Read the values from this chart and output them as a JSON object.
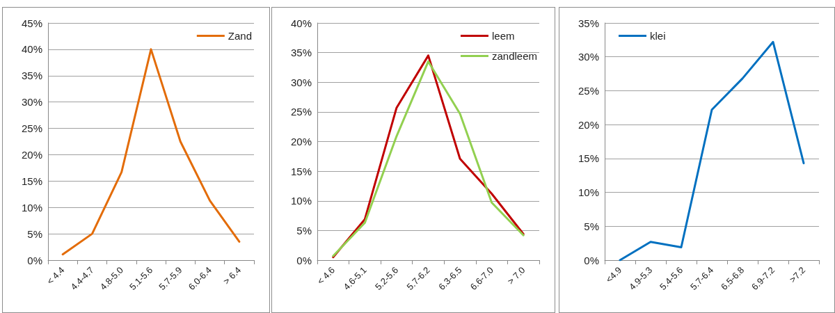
{
  "chart_data": [
    {
      "type": "line",
      "categories": [
        "< 4.4",
        "4.4-4.7",
        "4.8-5.0",
        "5.1-5.6",
        "5.7-5.9",
        "6.0-6.4",
        "> 6.4"
      ],
      "series": [
        {
          "name": "Zand",
          "color": "#e36c09",
          "values": [
            1.1,
            5,
            16.7,
            40,
            22.5,
            11.3,
            3.5
          ]
        }
      ],
      "ylim": [
        0,
        45
      ],
      "yticks": [
        {
          "value": 0,
          "label": "0%"
        },
        {
          "value": 5,
          "label": "5%"
        },
        {
          "value": 10,
          "label": "10%"
        },
        {
          "value": 15,
          "label": "15%"
        },
        {
          "value": 20,
          "label": "20%"
        },
        {
          "value": 25,
          "label": "25%"
        },
        {
          "value": 30,
          "label": "30%"
        },
        {
          "value": 35,
          "label": "35%"
        },
        {
          "value": 40,
          "label": "40%"
        },
        {
          "value": 45,
          "label": "45%"
        }
      ],
      "grid": "y",
      "legend": "top right",
      "marker": "none",
      "line_style": "solid"
    },
    {
      "type": "line",
      "categories": [
        "< 4.6",
        "4.6-5.1",
        "5.2-5.6",
        "5.7-6.2",
        "6.3-6.5",
        "6.6-7.0",
        "> 7.0"
      ],
      "series": [
        {
          "name": "leem",
          "color": "#c00000",
          "values": [
            0.5,
            6.9,
            25.7,
            34.5,
            17.1,
            11.2,
            4.4
          ]
        },
        {
          "name": "zandleem",
          "color": "#92d050",
          "values": [
            0.7,
            6.3,
            20.9,
            33.5,
            24.7,
            9.7,
            4.2
          ]
        }
      ],
      "ylim": [
        0,
        40
      ],
      "yticks": [
        {
          "value": 0,
          "label": "0%"
        },
        {
          "value": 5,
          "label": "5%"
        },
        {
          "value": 10,
          "label": "10%"
        },
        {
          "value": 15,
          "label": "15%"
        },
        {
          "value": 20,
          "label": "20%"
        },
        {
          "value": 25,
          "label": "25%"
        },
        {
          "value": 30,
          "label": "30%"
        },
        {
          "value": 35,
          "label": "35%"
        },
        {
          "value": 40,
          "label": "40%"
        }
      ],
      "grid": "y",
      "legend": "top right",
      "marker": "none",
      "line_style": "solid"
    },
    {
      "type": "line",
      "categories": [
        "<4.9",
        "4.9-5.3",
        "5.4-5.6",
        "5.7-6.4",
        "6.5-6.8",
        "6.9-7.2",
        ">7.2"
      ],
      "series": [
        {
          "name": "klei",
          "color": "#0070c0",
          "values": [
            0,
            2.7,
            1.9,
            22.2,
            26.8,
            32.2,
            14.3
          ]
        }
      ],
      "ylim": [
        0,
        35
      ],
      "yticks": [
        {
          "value": 0,
          "label": "0%"
        },
        {
          "value": 5,
          "label": "5%"
        },
        {
          "value": 10,
          "label": "10%"
        },
        {
          "value": 15,
          "label": "15%"
        },
        {
          "value": 20,
          "label": "20%"
        },
        {
          "value": 25,
          "label": "25%"
        },
        {
          "value": 30,
          "label": "30%"
        },
        {
          "value": 35,
          "label": "35%"
        }
      ],
      "grid": "y",
      "legend": "top left",
      "marker": "none",
      "line_style": "solid"
    }
  ]
}
